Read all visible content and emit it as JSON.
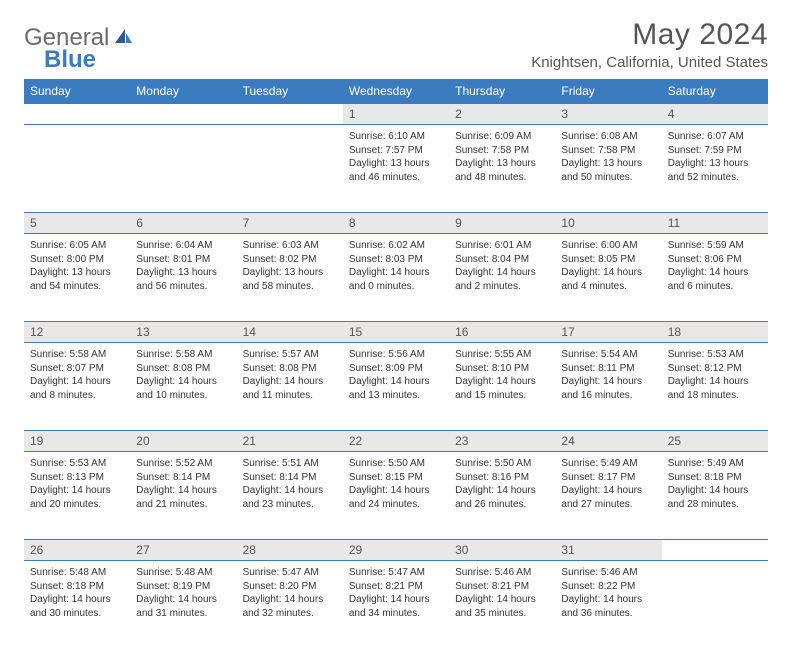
{
  "logo": {
    "part1": "General",
    "part2": "Blue"
  },
  "title": "May 2024",
  "location": "Knightsen, California, United States",
  "headers": [
    "Sunday",
    "Monday",
    "Tuesday",
    "Wednesday",
    "Thursday",
    "Friday",
    "Saturday"
  ],
  "colors": {
    "header_bg": "#3b7bbf",
    "header_text": "#ffffff",
    "daynum_bg": "#e8e8e8",
    "border": "#3b7bbf",
    "logo_gray": "#6b6b6b",
    "logo_blue": "#3b7bbf",
    "text": "#333333"
  },
  "weeks": [
    [
      null,
      null,
      null,
      {
        "n": "1",
        "sr": "6:10 AM",
        "ss": "7:57 PM",
        "dl": "13 hours and 46 minutes."
      },
      {
        "n": "2",
        "sr": "6:09 AM",
        "ss": "7:58 PM",
        "dl": "13 hours and 48 minutes."
      },
      {
        "n": "3",
        "sr": "6:08 AM",
        "ss": "7:58 PM",
        "dl": "13 hours and 50 minutes."
      },
      {
        "n": "4",
        "sr": "6:07 AM",
        "ss": "7:59 PM",
        "dl": "13 hours and 52 minutes."
      }
    ],
    [
      {
        "n": "5",
        "sr": "6:05 AM",
        "ss": "8:00 PM",
        "dl": "13 hours and 54 minutes."
      },
      {
        "n": "6",
        "sr": "6:04 AM",
        "ss": "8:01 PM",
        "dl": "13 hours and 56 minutes."
      },
      {
        "n": "7",
        "sr": "6:03 AM",
        "ss": "8:02 PM",
        "dl": "13 hours and 58 minutes."
      },
      {
        "n": "8",
        "sr": "6:02 AM",
        "ss": "8:03 PM",
        "dl": "14 hours and 0 minutes."
      },
      {
        "n": "9",
        "sr": "6:01 AM",
        "ss": "8:04 PM",
        "dl": "14 hours and 2 minutes."
      },
      {
        "n": "10",
        "sr": "6:00 AM",
        "ss": "8:05 PM",
        "dl": "14 hours and 4 minutes."
      },
      {
        "n": "11",
        "sr": "5:59 AM",
        "ss": "8:06 PM",
        "dl": "14 hours and 6 minutes."
      }
    ],
    [
      {
        "n": "12",
        "sr": "5:58 AM",
        "ss": "8:07 PM",
        "dl": "14 hours and 8 minutes."
      },
      {
        "n": "13",
        "sr": "5:58 AM",
        "ss": "8:08 PM",
        "dl": "14 hours and 10 minutes."
      },
      {
        "n": "14",
        "sr": "5:57 AM",
        "ss": "8:08 PM",
        "dl": "14 hours and 11 minutes."
      },
      {
        "n": "15",
        "sr": "5:56 AM",
        "ss": "8:09 PM",
        "dl": "14 hours and 13 minutes."
      },
      {
        "n": "16",
        "sr": "5:55 AM",
        "ss": "8:10 PM",
        "dl": "14 hours and 15 minutes."
      },
      {
        "n": "17",
        "sr": "5:54 AM",
        "ss": "8:11 PM",
        "dl": "14 hours and 16 minutes."
      },
      {
        "n": "18",
        "sr": "5:53 AM",
        "ss": "8:12 PM",
        "dl": "14 hours and 18 minutes."
      }
    ],
    [
      {
        "n": "19",
        "sr": "5:53 AM",
        "ss": "8:13 PM",
        "dl": "14 hours and 20 minutes."
      },
      {
        "n": "20",
        "sr": "5:52 AM",
        "ss": "8:14 PM",
        "dl": "14 hours and 21 minutes."
      },
      {
        "n": "21",
        "sr": "5:51 AM",
        "ss": "8:14 PM",
        "dl": "14 hours and 23 minutes."
      },
      {
        "n": "22",
        "sr": "5:50 AM",
        "ss": "8:15 PM",
        "dl": "14 hours and 24 minutes."
      },
      {
        "n": "23",
        "sr": "5:50 AM",
        "ss": "8:16 PM",
        "dl": "14 hours and 26 minutes."
      },
      {
        "n": "24",
        "sr": "5:49 AM",
        "ss": "8:17 PM",
        "dl": "14 hours and 27 minutes."
      },
      {
        "n": "25",
        "sr": "5:49 AM",
        "ss": "8:18 PM",
        "dl": "14 hours and 28 minutes."
      }
    ],
    [
      {
        "n": "26",
        "sr": "5:48 AM",
        "ss": "8:18 PM",
        "dl": "14 hours and 30 minutes."
      },
      {
        "n": "27",
        "sr": "5:48 AM",
        "ss": "8:19 PM",
        "dl": "14 hours and 31 minutes."
      },
      {
        "n": "28",
        "sr": "5:47 AM",
        "ss": "8:20 PM",
        "dl": "14 hours and 32 minutes."
      },
      {
        "n": "29",
        "sr": "5:47 AM",
        "ss": "8:21 PM",
        "dl": "14 hours and 34 minutes."
      },
      {
        "n": "30",
        "sr": "5:46 AM",
        "ss": "8:21 PM",
        "dl": "14 hours and 35 minutes."
      },
      {
        "n": "31",
        "sr": "5:46 AM",
        "ss": "8:22 PM",
        "dl": "14 hours and 36 minutes."
      },
      null
    ]
  ],
  "labels": {
    "sunrise": "Sunrise:",
    "sunset": "Sunset:",
    "daylight": "Daylight:"
  }
}
